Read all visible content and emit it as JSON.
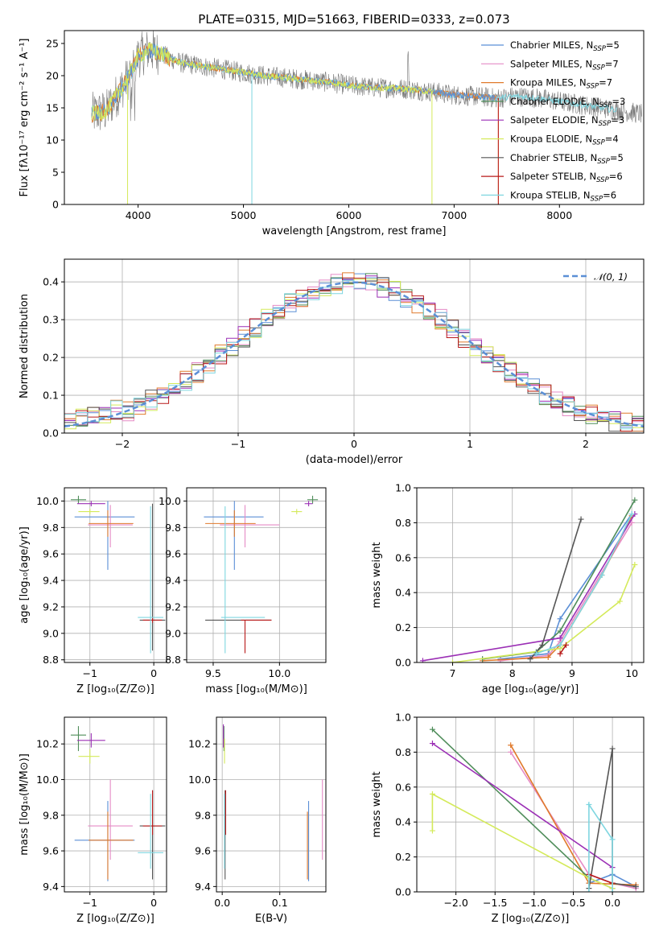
{
  "figure_title": "PLATE=0315, MJD=51663, FIBERID=0333, z=0.073",
  "colors": {
    "Chabrier MILES": "#5b8fd6",
    "Salpeter MILES": "#e58bc6",
    "Kroupa MILES": "#e07a2c",
    "Chabrier ELODIE": "#4f8d5a",
    "Salpeter ELODIE": "#9b2fb5",
    "Kroupa ELODIE": "#d4ea5a",
    "Chabrier STELIB": "#555555",
    "Salpeter STELIB": "#b81a1a",
    "Kroupa STELIB": "#7fd6e0",
    "normal": "#5b8fd6"
  },
  "chart_data": [
    {
      "id": "spectrum",
      "type": "line",
      "title": "PLATE=0315, MJD=51663, FIBERID=0333, z=0.073",
      "xlabel": "wavelength [Angstrom, rest frame]",
      "ylabel": "Flux [fλ10⁻¹⁷ erg cm⁻² s⁻¹ A⁻¹]",
      "xlim": [
        3300,
        8800
      ],
      "ylim": [
        0,
        27
      ],
      "xticks": [
        4000,
        5000,
        6000,
        7000,
        8000
      ],
      "yticks": [
        0,
        5,
        10,
        15,
        20,
        25
      ],
      "grid": false,
      "legend_position": "top-right",
      "legend": [
        {
          "name": "Chabrier MILES",
          "nssp": "5"
        },
        {
          "name": "Salpeter MILES",
          "nssp": "7"
        },
        {
          "name": "Kroupa MILES",
          "nssp": "7"
        },
        {
          "name": "Chabrier ELODIE",
          "nssp": "3"
        },
        {
          "name": "Salpeter ELODIE",
          "nssp": "3"
        },
        {
          "name": "Kroupa ELODIE",
          "nssp": "4"
        },
        {
          "name": "Chabrier STELIB",
          "nssp": "5"
        },
        {
          "name": "Salpeter STELIB",
          "nssp": "6"
        },
        {
          "name": "Kroupa STELIB",
          "nssp": "6"
        }
      ],
      "continuum": {
        "x": [
          3560,
          3700,
          3800,
          3900,
          4000,
          4100,
          4200,
          4400,
          4600,
          4800,
          5000,
          5200,
          5500,
          5800,
          6000,
          6200,
          6500,
          6800,
          7000,
          7200,
          7400,
          7600,
          7800,
          8000,
          8200,
          8400,
          8600,
          8800
        ],
        "y": [
          14,
          14.5,
          17,
          19.5,
          23,
          24,
          23.5,
          22,
          21.5,
          21,
          20.5,
          20,
          19.5,
          19,
          18.5,
          18.2,
          18,
          17.5,
          17,
          16.8,
          16.5,
          16.8,
          16.5,
          16,
          15.5,
          15,
          14.5,
          14
        ]
      }
    },
    {
      "id": "residuals",
      "type": "histogram",
      "xlabel": "(data-model)/error",
      "ylabel": "Normed distribution",
      "xlim": [
        -2.5,
        2.5
      ],
      "ylim": [
        0,
        0.46
      ],
      "xticks": [
        -2,
        -1,
        0,
        1,
        2
      ],
      "yticks": [
        0.0,
        0.1,
        0.2,
        0.3,
        0.4
      ],
      "grid": true,
      "legend_position": "top-right",
      "normal_label": "𝒩(0, 1)",
      "normal": {
        "mu": 0,
        "sigma": 1
      }
    },
    {
      "id": "age-vs-Z",
      "type": "errorbar",
      "xlabel": "Z [log₁₀(Z/Z⊙)]",
      "ylabel": "age  [log₁₀(age/yr)]",
      "xlim": [
        -1.4,
        0.2
      ],
      "ylim": [
        8.78,
        10.1
      ],
      "xticks": [
        -1,
        0
      ],
      "yticks": [
        8.8,
        9.0,
        9.2,
        9.4,
        9.6,
        9.8,
        10.0
      ],
      "grid": true,
      "points": [
        {
          "model": "Chabrier MILES",
          "x": -0.72,
          "y": 9.88,
          "xerr": [
            0.52,
            0.42
          ],
          "yerr": [
            0.4,
            0.12
          ]
        },
        {
          "model": "Salpeter MILES",
          "x": -0.68,
          "y": 9.82,
          "xerr": [
            0.35,
            0.35
          ],
          "yerr": [
            0.17,
            0.15
          ]
        },
        {
          "model": "Kroupa MILES",
          "x": -0.72,
          "y": 9.83,
          "xerr": [
            0.3,
            0.4
          ],
          "yerr": [
            0.1,
            0.1
          ]
        },
        {
          "model": "Chabrier ELODIE",
          "x": -1.18,
          "y": 10.01,
          "xerr": [
            0.12,
            0.12
          ],
          "yerr": [
            0.03,
            0.03
          ]
        },
        {
          "model": "Salpeter ELODIE",
          "x": -0.98,
          "y": 9.98,
          "xerr": [
            0.22,
            0.22
          ],
          "yerr": [
            0.02,
            0.02
          ]
        },
        {
          "model": "Kroupa ELODIE",
          "x": -1.0,
          "y": 9.92,
          "xerr": [
            0.18,
            0.15
          ],
          "yerr": [
            0.02,
            0.02
          ]
        },
        {
          "model": "Chabrier STELIB",
          "x": -0.02,
          "y": 9.1,
          "xerr": [
            0.2,
            0.2
          ],
          "yerr": [
            0.23,
            0.88
          ]
        },
        {
          "model": "Salpeter STELIB",
          "x": -0.02,
          "y": 9.1,
          "xerr": [
            0.15,
            0.15
          ],
          "yerr": [
            0.02,
            0.02
          ]
        },
        {
          "model": "Kroupa STELIB",
          "x": -0.05,
          "y": 9.12,
          "xerr": [
            0.2,
            0.2
          ],
          "yerr": [
            0.27,
            0.84
          ]
        }
      ]
    },
    {
      "id": "age-vs-mass",
      "type": "errorbar",
      "xlabel": "mass [log₁₀(M/M⊙)]",
      "ylabel": "",
      "xlim": [
        9.3,
        10.35
      ],
      "ylim": [
        8.78,
        10.1
      ],
      "xticks": [
        9.5,
        10.0
      ],
      "yticks": [
        8.8,
        9.0,
        9.2,
        9.4,
        9.6,
        9.8,
        10.0
      ],
      "grid": true,
      "points": [
        {
          "model": "Chabrier MILES",
          "x": 9.66,
          "y": 9.88,
          "xerr": [
            0.23,
            0.22
          ],
          "yerr": [
            0.4,
            0.12
          ]
        },
        {
          "model": "Salpeter MILES",
          "x": 9.74,
          "y": 9.82,
          "xerr": [
            0.19,
            0.26
          ],
          "yerr": [
            0.17,
            0.15
          ]
        },
        {
          "model": "Kroupa MILES",
          "x": 9.66,
          "y": 9.83,
          "xerr": [
            0.22,
            0.16
          ],
          "yerr": [
            0.1,
            0.1
          ]
        },
        {
          "model": "Chabrier ELODIE",
          "x": 10.25,
          "y": 10.01,
          "xerr": [
            0.04,
            0.04
          ],
          "yerr": [
            0.03,
            0.03
          ]
        },
        {
          "model": "Salpeter ELODIE",
          "x": 10.22,
          "y": 9.98,
          "xerr": [
            0.03,
            0.03
          ],
          "yerr": [
            0.02,
            0.02
          ]
        },
        {
          "model": "Kroupa ELODIE",
          "x": 10.13,
          "y": 9.92,
          "xerr": [
            0.04,
            0.04
          ],
          "yerr": [
            0.02,
            0.02
          ]
        },
        {
          "model": "Chabrier STELIB",
          "x": 9.74,
          "y": 9.1,
          "xerr": [
            0.3,
            0.2
          ],
          "yerr": [
            0.0,
            0.0
          ]
        },
        {
          "model": "Salpeter STELIB",
          "x": 9.74,
          "y": 9.1,
          "xerr": [
            0.03,
            0.2
          ],
          "yerr": [
            0.25,
            0.0
          ]
        },
        {
          "model": "Kroupa STELIB",
          "x": 9.59,
          "y": 9.12,
          "xerr": [
            0.03,
            0.3
          ],
          "yerr": [
            0.27,
            0.84
          ]
        }
      ]
    },
    {
      "id": "mass-vs-Z",
      "type": "errorbar",
      "xlabel": "Z [log₁₀(Z/Z⊙)]",
      "ylabel": "mass [log₁₀(M/M⊙)]",
      "xlim": [
        -1.4,
        0.2
      ],
      "ylim": [
        9.37,
        10.35
      ],
      "xticks": [
        -1,
        0
      ],
      "yticks": [
        9.4,
        9.6,
        9.8,
        10.0,
        10.2
      ],
      "grid": true,
      "points": [
        {
          "model": "Chabrier MILES",
          "x": -0.72,
          "y": 9.66,
          "xerr": [
            0.52,
            0.42
          ],
          "yerr": [
            0.23,
            0.22
          ]
        },
        {
          "model": "Salpeter MILES",
          "x": -0.68,
          "y": 9.74,
          "xerr": [
            0.35,
            0.35
          ],
          "yerr": [
            0.19,
            0.26
          ]
        },
        {
          "model": "Kroupa MILES",
          "x": -0.72,
          "y": 9.66,
          "xerr": [
            0.3,
            0.4
          ],
          "yerr": [
            0.22,
            0.16
          ]
        },
        {
          "model": "Chabrier ELODIE",
          "x": -1.18,
          "y": 10.25,
          "xerr": [
            0.12,
            0.12
          ],
          "yerr": [
            0.09,
            0.05
          ]
        },
        {
          "model": "Salpeter ELODIE",
          "x": -0.98,
          "y": 10.22,
          "xerr": [
            0.22,
            0.22
          ],
          "yerr": [
            0.04,
            0.04
          ]
        },
        {
          "model": "Kroupa ELODIE",
          "x": -1.0,
          "y": 10.13,
          "xerr": [
            0.18,
            0.15
          ],
          "yerr": [
            0.04,
            0.04
          ]
        },
        {
          "model": "Chabrier STELIB",
          "x": -0.02,
          "y": 9.74,
          "xerr": [
            0.2,
            0.2
          ],
          "yerr": [
            0.3,
            0.2
          ]
        },
        {
          "model": "Salpeter STELIB",
          "x": -0.02,
          "y": 9.74,
          "xerr": [
            0.15,
            0.15
          ],
          "yerr": [
            0.05,
            0.2
          ]
        },
        {
          "model": "Kroupa STELIB",
          "x": -0.05,
          "y": 9.59,
          "xerr": [
            0.2,
            0.2
          ],
          "yerr": [
            0.09,
            0.33
          ]
        }
      ]
    },
    {
      "id": "mass-vs-EBV",
      "type": "errorbar",
      "xlabel": "E(B-V)",
      "ylabel": "",
      "xlim": [
        -0.01,
        0.18
      ],
      "ylim": [
        9.37,
        10.35
      ],
      "xticks": [
        0.0,
        0.1
      ],
      "yticks": [
        9.4,
        9.6,
        9.8,
        10.0,
        10.2
      ],
      "grid": true,
      "points": [
        {
          "model": "Chabrier MILES",
          "x": 0.15,
          "y": 9.66,
          "xerr": [
            0,
            0
          ],
          "yerr": [
            0.23,
            0.22
          ]
        },
        {
          "model": "Salpeter MILES",
          "x": 0.174,
          "y": 9.74,
          "xerr": [
            0,
            0
          ],
          "yerr": [
            0.19,
            0.26
          ]
        },
        {
          "model": "Kroupa MILES",
          "x": 0.148,
          "y": 9.66,
          "xerr": [
            0,
            0
          ],
          "yerr": [
            0.22,
            0.16
          ]
        },
        {
          "model": "Chabrier ELODIE",
          "x": 0.003,
          "y": 10.25,
          "xerr": [
            0,
            0
          ],
          "yerr": [
            0.09,
            0.05
          ]
        },
        {
          "model": "Salpeter ELODIE",
          "x": 0.002,
          "y": 10.22,
          "xerr": [
            0,
            0
          ],
          "yerr": [
            0.04,
            0.09
          ]
        },
        {
          "model": "Kroupa ELODIE",
          "x": 0.004,
          "y": 10.13,
          "xerr": [
            0,
            0
          ],
          "yerr": [
            0.04,
            0.1
          ]
        },
        {
          "model": "Chabrier STELIB",
          "x": 0.005,
          "y": 9.74,
          "xerr": [
            0,
            0
          ],
          "yerr": [
            0.3,
            0.2
          ]
        },
        {
          "model": "Salpeter STELIB",
          "x": 0.006,
          "y": 9.74,
          "xerr": [
            0,
            0
          ],
          "yerr": [
            0.05,
            0.2
          ]
        },
        {
          "model": "Kroupa STELIB",
          "x": 0.004,
          "y": 9.59,
          "xerr": [
            0,
            0
          ],
          "yerr": [
            0.09,
            0.33
          ]
        }
      ]
    },
    {
      "id": "weight-vs-age",
      "type": "line",
      "xlabel": "age  [log₁₀(age/yr)]",
      "ylabel": "mass weight",
      "xlim": [
        6.4,
        10.2
      ],
      "ylim": [
        0,
        1
      ],
      "xticks": [
        7,
        8,
        9,
        10
      ],
      "yticks": [
        0.0,
        0.2,
        0.4,
        0.6,
        0.8,
        1.0
      ],
      "grid": true,
      "series": [
        {
          "model": "Chabrier MILES",
          "x": [
            7.8,
            8.6,
            8.8,
            10.0
          ],
          "y": [
            0.02,
            0.05,
            0.25,
            0.85
          ]
        },
        {
          "model": "Salpeter MILES",
          "x": [
            7.8,
            8.6,
            8.8,
            10.0
          ],
          "y": [
            0.01,
            0.04,
            0.12,
            0.8
          ]
        },
        {
          "model": "Kroupa MILES",
          "x": [
            7.5,
            8.6,
            8.8,
            9.5,
            10.0
          ],
          "y": [
            0.01,
            0.03,
            0.1,
            0.5,
            0.84
          ]
        },
        {
          "model": "Chabrier ELODIE",
          "x": [
            7.5,
            8.4,
            8.8,
            10.05
          ],
          "y": [
            0.02,
            0.06,
            0.18,
            0.93
          ]
        },
        {
          "model": "Salpeter ELODIE",
          "x": [
            6.5,
            8.8,
            10.05
          ],
          "y": [
            0.01,
            0.14,
            0.85
          ]
        },
        {
          "model": "Kroupa ELODIE",
          "x": [
            7.0,
            8.8,
            9.8,
            10.05
          ],
          "y": [
            0.0,
            0.08,
            0.35,
            0.56
          ]
        },
        {
          "model": "Chabrier STELIB",
          "x": [
            8.3,
            8.5,
            9.15
          ],
          "y": [
            0.02,
            0.1,
            0.82
          ]
        },
        {
          "model": "Salpeter STELIB",
          "x": [
            8.8,
            8.9
          ],
          "y": [
            0.05,
            0.1
          ]
        },
        {
          "model": "Kroupa STELIB",
          "x": [
            8.4,
            8.8,
            9.5,
            10.0
          ],
          "y": [
            0.05,
            0.1,
            0.5,
            0.85
          ]
        }
      ]
    },
    {
      "id": "weight-vs-Z",
      "type": "line",
      "xlabel": "Z [log₁₀(Z/Z⊙)]",
      "ylabel": "mass weight",
      "xlim": [
        -2.5,
        0.4
      ],
      "ylim": [
        0,
        1
      ],
      "xticks": [
        -2.0,
        -1.5,
        -1.0,
        -0.5,
        0.0
      ],
      "yticks": [
        0.0,
        0.2,
        0.4,
        0.6,
        0.8,
        1.0
      ],
      "grid": true,
      "series": [
        {
          "model": "Chabrier MILES",
          "x": [
            -0.3,
            0.0,
            0.3
          ],
          "y": [
            0.05,
            0.1,
            0.03
          ]
        },
        {
          "model": "Salpeter MILES",
          "x": [
            -1.3,
            -0.3,
            0.0,
            0.3
          ],
          "y": [
            0.8,
            0.1,
            0.05,
            0.02
          ]
        },
        {
          "model": "Kroupa MILES",
          "x": [
            -1.3,
            -0.3,
            0.3
          ],
          "y": [
            0.84,
            0.05,
            0.04
          ]
        },
        {
          "model": "Chabrier ELODIE",
          "x": [
            -2.3,
            -0.3,
            0.0
          ],
          "y": [
            0.93,
            0.08,
            0.02
          ]
        },
        {
          "model": "Salpeter ELODIE",
          "x": [
            -2.3,
            0.0
          ],
          "y": [
            0.85,
            0.14
          ]
        },
        {
          "model": "Kroupa ELODIE",
          "x": [
            -2.3,
            -2.3,
            -0.3,
            0.0
          ],
          "y": [
            0.35,
            0.56,
            0.08,
            0.02
          ]
        },
        {
          "model": "Chabrier STELIB",
          "x": [
            -0.3,
            0.0,
            0.0,
            0.3
          ],
          "y": [
            0.02,
            0.82,
            0.05,
            0.03
          ]
        },
        {
          "model": "Salpeter STELIB",
          "x": [
            -0.3,
            0.0
          ],
          "y": [
            0.1,
            0.05
          ]
        },
        {
          "model": "Kroupa STELIB",
          "x": [
            -0.3,
            -0.3,
            0.0,
            0.0
          ],
          "y": [
            0.0,
            0.5,
            0.3,
            0.0
          ]
        }
      ]
    }
  ]
}
